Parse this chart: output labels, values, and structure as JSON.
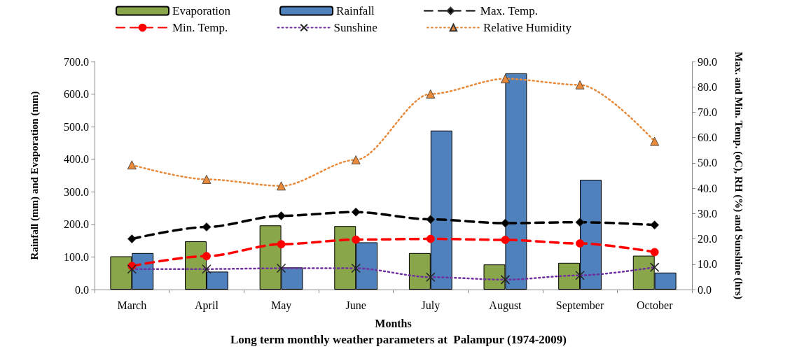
{
  "chart_data": {
    "type": "bar",
    "title": "Long term monthly weather parameters at  Palampur (1974-2009)",
    "xlabel": "Months",
    "ylabel": "Rainfall (mm) and Evaporation (mm)",
    "y2label": "Max. and Min. Temp. (oC), RH (%) and Sunshine (hrs)",
    "categories": [
      "March",
      "April",
      "May",
      "June",
      "July",
      "August",
      "September",
      "October"
    ],
    "series": [
      {
        "name": "Evaporation",
        "color": "#8aa64a",
        "values": [
          102,
          148,
          197,
          195,
          112,
          77,
          82,
          104
        ]
      },
      {
        "name": "Rainfall",
        "color": "#4f81bd",
        "values": [
          112,
          55,
          68,
          145,
          488,
          664,
          337,
          52
        ]
      },
      {
        "name": "Max. Temp.",
        "type": "line",
        "axis": "y2",
        "color": "#000000",
        "marker": "diamond",
        "line_style": "dashed",
        "values": [
          20.0,
          24.7,
          29.1,
          30.6,
          27.7,
          26.2,
          26.6,
          25.5
        ]
      },
      {
        "name": "Min. Temp.",
        "type": "line",
        "axis": "y2",
        "color": "#ff0000",
        "marker": "circle",
        "line_style": "dashed",
        "values": [
          9.3,
          13.2,
          17.9,
          19.7,
          20.0,
          19.6,
          18.2,
          14.8
        ]
      },
      {
        "name": "Sunshine",
        "type": "line",
        "axis": "y2",
        "color": "#7030a0",
        "marker": "cross",
        "line_style": "dotted",
        "values": [
          8.1,
          8.1,
          8.4,
          8.4,
          4.9,
          3.9,
          5.6,
          8.8
        ]
      },
      {
        "name": "Relative Humidity",
        "type": "line",
        "axis": "y2",
        "color": "#e88a3a",
        "marker": "triangle",
        "line_style": "dotted",
        "values": [
          49.2,
          43.5,
          40.9,
          51.2,
          77.2,
          83.2,
          80.8,
          58.5
        ]
      }
    ],
    "ylim": [
      0,
      700
    ],
    "yticks": [
      {
        "value": 0,
        "label": "0.0"
      },
      {
        "value": 100,
        "label": "100.0"
      },
      {
        "value": 200,
        "label": "200.0"
      },
      {
        "value": 300,
        "label": "300.0"
      },
      {
        "value": 400,
        "label": "400.0"
      },
      {
        "value": 500,
        "label": "500.0"
      },
      {
        "value": 600,
        "label": "600.0"
      },
      {
        "value": 700,
        "label": "700.0"
      }
    ],
    "y2lim": [
      0,
      90
    ],
    "y2ticks": [
      {
        "value": 0,
        "label": "0.0"
      },
      {
        "value": 10,
        "label": "10.0"
      },
      {
        "value": 20,
        "label": "20.0"
      },
      {
        "value": 30,
        "label": "30.0"
      },
      {
        "value": 40,
        "label": "40.0"
      },
      {
        "value": 50,
        "label": "50.0"
      },
      {
        "value": 60,
        "label": "60.0"
      },
      {
        "value": 70,
        "label": "70.0"
      },
      {
        "value": 80,
        "label": "80.0"
      },
      {
        "value": 90,
        "label": "90.0"
      }
    ],
    "grid": false,
    "legend": "top"
  }
}
